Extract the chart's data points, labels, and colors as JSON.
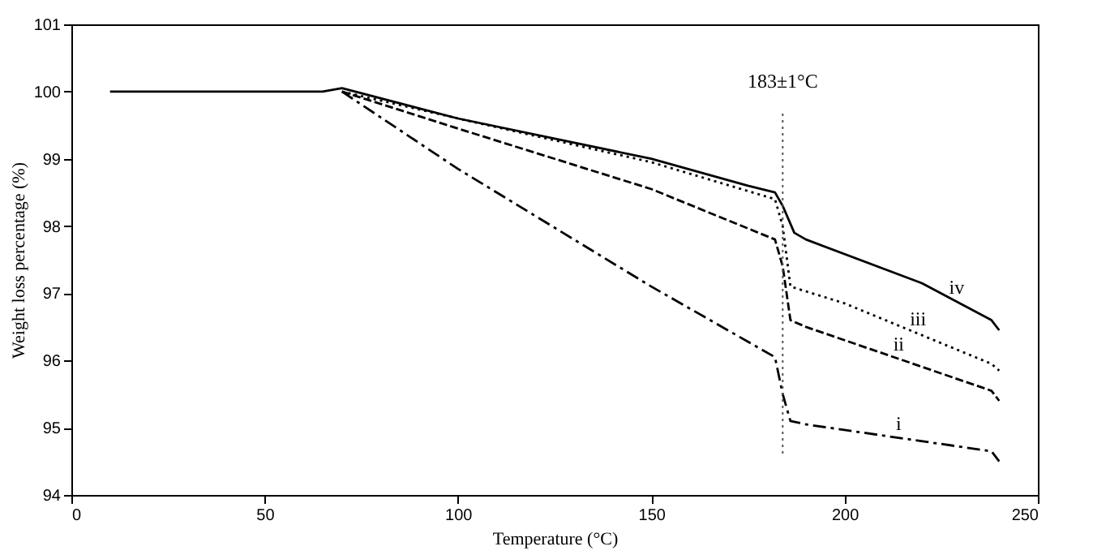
{
  "chart_data": {
    "type": "line",
    "xlabel": "Temperature (°C)",
    "ylabel": "Weight loss percentage (%)",
    "xlim": [
      0,
      250
    ],
    "xticks": [
      0,
      50,
      100,
      150,
      200,
      250
    ],
    "ylim": [
      94,
      101
    ],
    "yticks": [
      94,
      95,
      96,
      97,
      98,
      99,
      100,
      101
    ],
    "grid": false,
    "marker": "none",
    "series": [
      {
        "name": "iv",
        "color": "#000000",
        "line_style": "solid",
        "x": [
          10,
          65,
          70,
          100,
          150,
          175,
          182,
          184,
          187,
          190,
          220,
          238,
          240
        ],
        "values": [
          100,
          100,
          100.05,
          99.6,
          99.0,
          98.6,
          98.5,
          98.3,
          97.9,
          97.8,
          97.15,
          96.6,
          96.45
        ]
      },
      {
        "name": "iii",
        "color": "#000000",
        "line_style": "dotted",
        "x": [
          70,
          100,
          150,
          182,
          184,
          186,
          200,
          238,
          240
        ],
        "values": [
          100,
          99.6,
          98.95,
          98.4,
          98.0,
          97.1,
          96.85,
          95.95,
          95.85
        ]
      },
      {
        "name": "ii",
        "color": "#000000",
        "line_style": "dashed",
        "x": [
          70,
          100,
          150,
          182,
          184,
          186,
          190,
          238,
          240
        ],
        "values": [
          100,
          99.45,
          98.55,
          97.8,
          97.4,
          96.6,
          96.5,
          95.55,
          95.4
        ]
      },
      {
        "name": "i",
        "color": "#000000",
        "line_style": "dashdot",
        "x": [
          70,
          100,
          150,
          182,
          184,
          186,
          190,
          238,
          240
        ],
        "values": [
          100,
          98.85,
          97.1,
          96.05,
          95.5,
          95.1,
          95.05,
          94.65,
          94.5
        ]
      }
    ],
    "ref_lines": [
      {
        "axis": "x",
        "value": 184,
        "label": "183±1°C",
        "color": "#555555",
        "line_style": "dotted"
      }
    ]
  }
}
